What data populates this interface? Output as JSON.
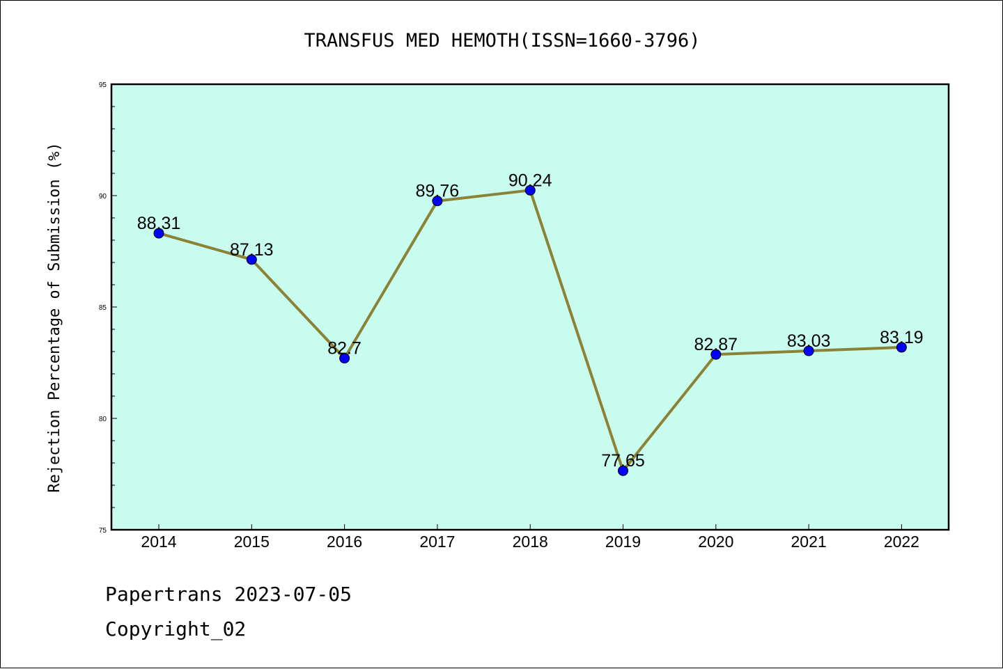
{
  "footer": {
    "line1": "Papertrans 2023-07-05",
    "line2": "Copyright_02"
  },
  "colors": {
    "plot_background": "#c8fcee",
    "line": "#8b8236",
    "marker": "#0000ff"
  },
  "chart_data": {
    "type": "line",
    "title": "TRANSFUS MED HEMOTH(ISSN=1660-3796)",
    "xlabel": "",
    "ylabel": "Rejection Percentage of Submission (%)",
    "categories": [
      "2014",
      "2015",
      "2016",
      "2017",
      "2018",
      "2019",
      "2020",
      "2021",
      "2022"
    ],
    "values": [
      88.31,
      87.13,
      82.7,
      89.76,
      90.24,
      77.65,
      82.87,
      83.03,
      83.19
    ],
    "data_labels": [
      "88.31",
      "87.13",
      "82.7",
      "89.76",
      "90.24",
      "77.65",
      "82.87",
      "83.03",
      "83.19"
    ],
    "ylim": [
      75,
      95
    ],
    "yticks": [
      "75",
      "80",
      "85",
      "90",
      "95"
    ],
    "grid": false,
    "legend": "none"
  }
}
